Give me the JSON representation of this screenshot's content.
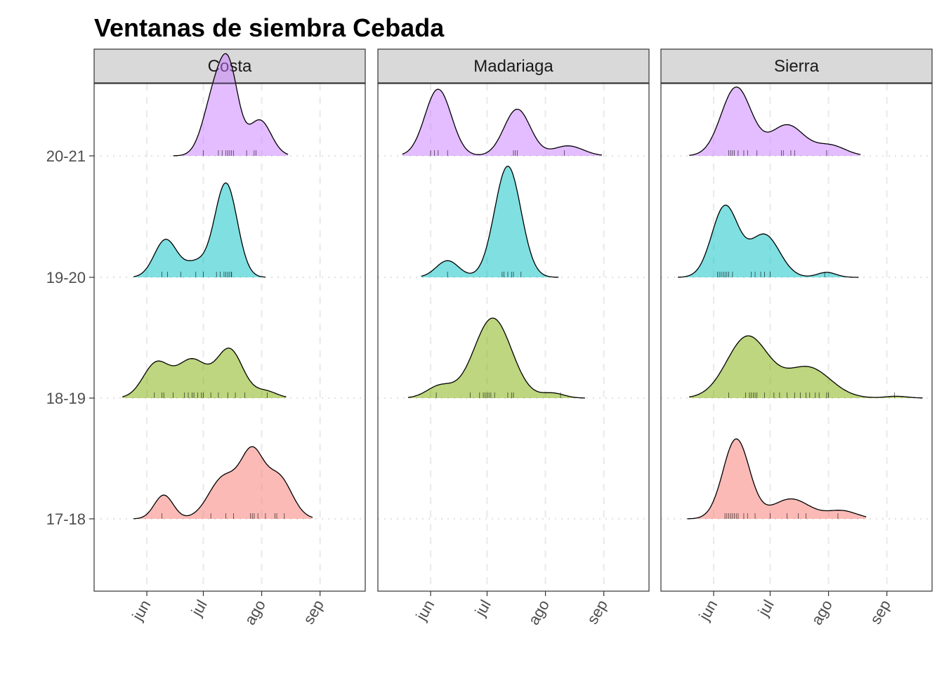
{
  "chart_data": {
    "type": "ridgeline",
    "title": "Ventanas de siembra Cebada",
    "xlabel": "",
    "ylabel": "",
    "x_ticks": [
      {
        "label": "jun",
        "date": "06-01"
      },
      {
        "label": "jul",
        "date": "07-01"
      },
      {
        "label": "ago",
        "date": "08-01"
      },
      {
        "label": "sep",
        "date": "09-01"
      }
    ],
    "x_range": [
      "05-04",
      "09-25"
    ],
    "grid": {
      "major_x": "dashed",
      "y": "dotted"
    },
    "legend": "none",
    "rows": [
      "17-18",
      "18-19",
      "19-20",
      "20-21"
    ],
    "row_colors": {
      "17-18": "#F8766D",
      "18-19": "#7CAE00",
      "19-20": "#00BFC4",
      "20-21": "#C77CFF"
    },
    "panels": [
      {
        "name": "Costa",
        "series": [
          {
            "row": "17-18",
            "peak": 0.65,
            "range": [
              "05-25",
              "08-28"
            ],
            "components": [
              {
                "mu": "06-10",
                "sd": 5,
                "w": 0.2
              },
              {
                "mu": "07-12",
                "sd": 8,
                "w": 0.35
              },
              {
                "mu": "07-27",
                "sd": 6,
                "w": 0.5
              },
              {
                "mu": "08-10",
                "sd": 7,
                "w": 0.35
              }
            ],
            "dates": [
              "06-09",
              "07-05",
              "07-13",
              "07-17",
              "07-26",
              "07-27",
              "07-28",
              "07-30",
              "08-03",
              "08-08",
              "08-09",
              "08-13"
            ]
          },
          {
            "row": "18-19",
            "peak": 0.45,
            "range": [
              "05-19",
              "08-14"
            ],
            "components": [
              {
                "mu": "06-06",
                "sd": 7,
                "w": 0.5
              },
              {
                "mu": "06-25",
                "sd": 8,
                "w": 0.55
              },
              {
                "mu": "07-15",
                "sd": 7,
                "w": 0.7
              },
              {
                "mu": "08-03",
                "sd": 6,
                "w": 0.1
              }
            ],
            "dates": [
              "06-05",
              "06-09",
              "06-10",
              "06-15",
              "06-21",
              "06-23",
              "06-25",
              "06-26",
              "06-28",
              "06-30",
              "07-01",
              "07-05",
              "07-09",
              "07-14",
              "07-18",
              "07-23",
              "08-04"
            ]
          },
          {
            "row": "19-20",
            "peak": 0.85,
            "range": [
              "05-25",
              "08-03"
            ],
            "components": [
              {
                "mu": "06-11",
                "sd": 6,
                "w": 0.4
              },
              {
                "mu": "06-27",
                "sd": 6,
                "w": 0.15
              },
              {
                "mu": "07-13",
                "sd": 6,
                "w": 1.0
              }
            ],
            "dates": [
              "06-09",
              "06-12",
              "06-19",
              "06-27",
              "07-01",
              "07-08",
              "07-10",
              "07-12",
              "07-13",
              "07-14",
              "07-15",
              "07-16",
              "07-16"
            ]
          },
          {
            "row": "20-21",
            "peak": 0.92,
            "range": [
              "06-15",
              "08-15"
            ],
            "components": [
              {
                "mu": "07-07",
                "sd": 6,
                "w": 0.5
              },
              {
                "mu": "07-15",
                "sd": 5,
                "w": 0.6
              },
              {
                "mu": "07-31",
                "sd": 6,
                "w": 0.3
              }
            ],
            "dates": [
              "07-01",
              "07-09",
              "07-11",
              "07-13",
              "07-14",
              "07-15",
              "07-16",
              "07-17",
              "07-24",
              "07-28",
              "07-29"
            ]
          }
        ]
      },
      {
        "name": "Madariaga",
        "series": [
          {
            "row": "18-19",
            "peak": 0.72,
            "range": [
              "05-20",
              "08-22"
            ],
            "components": [
              {
                "mu": "06-06",
                "sd": 7,
                "w": 0.15
              },
              {
                "mu": "07-04",
                "sd": 10,
                "w": 1.0
              },
              {
                "mu": "08-05",
                "sd": 6,
                "w": 0.06
              }
            ],
            "dates": [
              "06-04",
              "06-22",
              "06-27",
              "06-29",
              "06-30",
              "07-01",
              "07-02",
              "07-03",
              "07-05",
              "07-12",
              "07-14",
              "07-15",
              "08-09"
            ]
          },
          {
            "row": "19-20",
            "peak": 1.0,
            "range": [
              "05-27",
              "08-08"
            ],
            "components": [
              {
                "mu": "06-10",
                "sd": 6,
                "w": 0.15
              },
              {
                "mu": "07-12",
                "sd": 7,
                "w": 1.0
              }
            ],
            "dates": [
              "06-10",
              "07-09",
              "07-10",
              "07-12",
              "07-14",
              "07-15",
              "07-19"
            ]
          },
          {
            "row": "20-21",
            "peak": 0.6,
            "range": [
              "05-17",
              "08-31"
            ],
            "components": [
              {
                "mu": "06-05",
                "sd": 7,
                "w": 1.0
              },
              {
                "mu": "07-17",
                "sd": 7,
                "w": 0.7
              },
              {
                "mu": "08-13",
                "sd": 8,
                "w": 0.15
              }
            ],
            "dates": [
              "06-01",
              "06-03",
              "06-05",
              "06-10",
              "07-15",
              "07-16",
              "07-17",
              "08-11"
            ]
          }
        ]
      },
      {
        "name": "Sierra",
        "series": [
          {
            "row": "17-18",
            "peak": 0.72,
            "range": [
              "05-18",
              "08-21"
            ],
            "components": [
              {
                "mu": "06-13",
                "sd": 7,
                "w": 1.0
              },
              {
                "mu": "07-12",
                "sd": 10,
                "w": 0.25
              },
              {
                "mu": "08-08",
                "sd": 8,
                "w": 0.1
              }
            ],
            "dates": [
              "06-07",
              "06-08",
              "06-09",
              "06-10",
              "06-11",
              "06-12",
              "06-13",
              "06-14",
              "06-17",
              "06-19",
              "06-23",
              "07-01",
              "07-10",
              "07-16",
              "07-20",
              "08-06"
            ]
          },
          {
            "row": "18-19",
            "peak": 0.56,
            "range": [
              "05-19",
              "09-20"
            ],
            "components": [
              {
                "mu": "06-19",
                "sd": 11,
                "w": 1.0
              },
              {
                "mu": "07-21",
                "sd": 12,
                "w": 0.5
              },
              {
                "mu": "09-06",
                "sd": 6,
                "w": 0.03
              }
            ],
            "dates": [
              "06-09",
              "06-18",
              "06-20",
              "06-21",
              "06-22",
              "06-23",
              "06-24",
              "06-28",
              "07-03",
              "07-06",
              "07-10",
              "07-14",
              "07-17",
              "07-20",
              "07-22",
              "07-25",
              "07-27",
              "07-31",
              "08-01",
              "09-05"
            ]
          },
          {
            "row": "19-20",
            "peak": 0.65,
            "range": [
              "05-13",
              "08-17"
            ],
            "components": [
              {
                "mu": "06-07",
                "sd": 7,
                "w": 1.0
              },
              {
                "mu": "06-28",
                "sd": 8,
                "w": 0.6
              },
              {
                "mu": "07-31",
                "sd": 5,
                "w": 0.07
              }
            ],
            "dates": [
              "06-03",
              "06-04",
              "06-05",
              "06-06",
              "06-07",
              "06-08",
              "06-09",
              "06-11",
              "06-21",
              "06-23",
              "06-26",
              "06-28",
              "07-01",
              "07-30"
            ]
          },
          {
            "row": "20-21",
            "peak": 0.62,
            "range": [
              "05-19",
              "08-18"
            ],
            "components": [
              {
                "mu": "06-13",
                "sd": 8,
                "w": 1.0
              },
              {
                "mu": "07-10",
                "sd": 9,
                "w": 0.45
              },
              {
                "mu": "08-02",
                "sd": 8,
                "w": 0.15
              }
            ],
            "dates": [
              "06-09",
              "06-10",
              "06-11",
              "06-12",
              "06-14",
              "06-17",
              "06-19",
              "06-24",
              "07-07",
              "07-08",
              "07-12",
              "07-14",
              "07-31"
            ]
          }
        ]
      }
    ]
  }
}
